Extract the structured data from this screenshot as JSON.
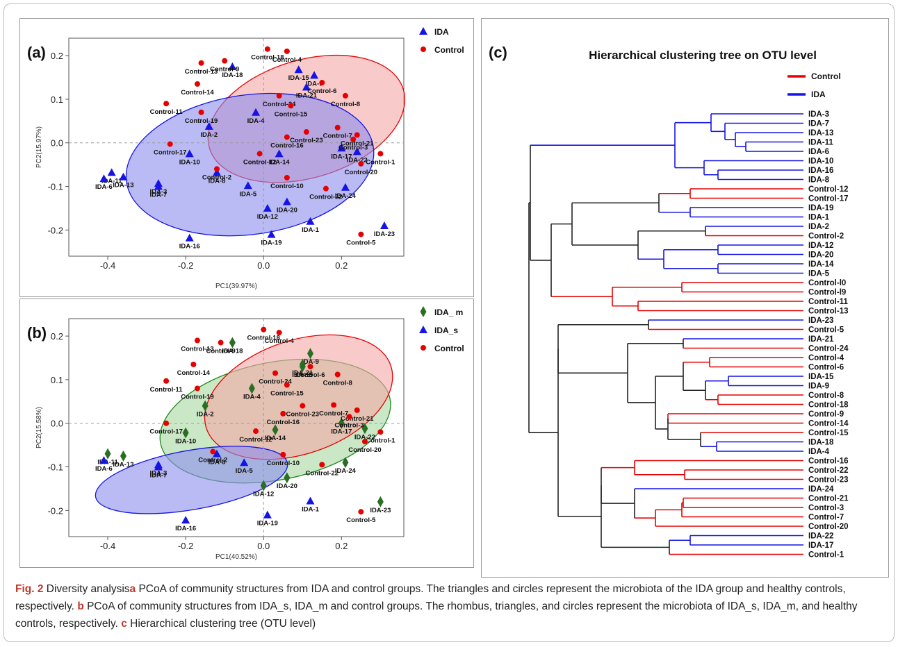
{
  "chart_data": [
    {
      "type": "scatter",
      "panel_label": "(a)",
      "xlabel": "PC1(39.97%)",
      "ylabel": "PC2(15.97%)",
      "xlim": [
        -0.5,
        0.36
      ],
      "ylim": [
        -0.26,
        0.24
      ],
      "xticks": [
        -0.4,
        -0.2,
        0.0,
        0.2
      ],
      "yticks": [
        0.2,
        0.1,
        0.0,
        -0.1,
        -0.2
      ],
      "xtick_labels": [
        "-0.4",
        "-0.2",
        "0.0",
        "0.2"
      ],
      "ytick_labels": [
        "0.2",
        "0.1",
        "0.0",
        "-0.1",
        "-0.2"
      ],
      "legend_position": "top-right",
      "series": [
        {
          "name": "IDA",
          "marker": "triangle",
          "color": "#1414e6",
          "points": [
            {
              "label": "IDA-11",
              "x": -0.39,
              "y": -0.068
            },
            {
              "label": "IDA-13",
              "x": -0.36,
              "y": -0.078
            },
            {
              "label": "IDA-6",
              "x": -0.41,
              "y": -0.082
            },
            {
              "label": "IDA-3",
              "x": -0.27,
              "y": -0.093
            },
            {
              "label": "IDA-7",
              "x": -0.27,
              "y": -0.1
            },
            {
              "label": "IDA-16",
              "x": -0.19,
              "y": -0.218
            },
            {
              "label": "IDA-10",
              "x": -0.19,
              "y": -0.025
            },
            {
              "label": "IDA-2",
              "x": -0.14,
              "y": 0.038
            },
            {
              "label": "IDA-8",
              "x": -0.12,
              "y": -0.068
            },
            {
              "label": "IDA-18",
              "x": -0.08,
              "y": 0.175
            },
            {
              "label": "IDA-4",
              "x": -0.02,
              "y": 0.07
            },
            {
              "label": "IDA-14",
              "x": 0.04,
              "y": -0.025
            },
            {
              "label": "IDA-5",
              "x": -0.04,
              "y": -0.098
            },
            {
              "label": "IDA-12",
              "x": 0.01,
              "y": -0.15
            },
            {
              "label": "IDA-20",
              "x": 0.06,
              "y": -0.135
            },
            {
              "label": "IDA-19",
              "x": 0.02,
              "y": -0.21
            },
            {
              "label": "IDA-1",
              "x": 0.12,
              "y": -0.18
            },
            {
              "label": "IDA-9",
              "x": 0.13,
              "y": 0.155
            },
            {
              "label": "IDA-21",
              "x": 0.11,
              "y": 0.128
            },
            {
              "label": "IDA-17",
              "x": 0.2,
              "y": -0.012
            },
            {
              "label": "IDA-22",
              "x": 0.24,
              "y": -0.02
            },
            {
              "label": "IDA-24",
              "x": 0.21,
              "y": -0.102
            },
            {
              "label": "IDA-23",
              "x": 0.31,
              "y": -0.19
            },
            {
              "label": "IDA-15",
              "x": 0.09,
              "y": 0.168
            }
          ]
        },
        {
          "name": "Control",
          "marker": "circle",
          "color": "#e60000",
          "points": [
            {
              "label": "Control-13",
              "x": -0.16,
              "y": 0.183
            },
            {
              "label": "Control-9",
              "x": -0.1,
              "y": 0.188
            },
            {
              "label": "Control-18",
              "x": 0.01,
              "y": 0.215
            },
            {
              "label": "Control-4",
              "x": 0.06,
              "y": 0.21
            },
            {
              "label": "Control-14",
              "x": -0.17,
              "y": 0.135
            },
            {
              "label": "Control-11",
              "x": -0.25,
              "y": 0.09
            },
            {
              "label": "Control-19",
              "x": -0.16,
              "y": 0.07
            },
            {
              "label": "Control-6",
              "x": 0.15,
              "y": 0.138
            },
            {
              "label": "Control-8",
              "x": 0.21,
              "y": 0.108
            },
            {
              "label": "Control-24",
              "x": 0.04,
              "y": 0.108
            },
            {
              "label": "Control-15",
              "x": 0.07,
              "y": 0.085
            },
            {
              "label": "Control-23",
              "x": 0.11,
              "y": 0.025
            },
            {
              "label": "Control-16",
              "x": 0.06,
              "y": 0.013
            },
            {
              "label": "Control-7",
              "x": 0.19,
              "y": 0.035
            },
            {
              "label": "Control-21",
              "x": 0.24,
              "y": 0.018
            },
            {
              "label": "Control-3",
              "x": 0.23,
              "y": 0.008
            },
            {
              "label": "Control-1",
              "x": 0.3,
              "y": -0.025
            },
            {
              "label": "Control-17",
              "x": -0.24,
              "y": -0.003
            },
            {
              "label": "Control-2",
              "x": -0.12,
              "y": -0.06
            },
            {
              "label": "Control-12",
              "x": -0.01,
              "y": -0.025
            },
            {
              "label": "Control-10",
              "x": 0.06,
              "y": -0.08
            },
            {
              "label": "Control-22",
              "x": 0.16,
              "y": -0.105
            },
            {
              "label": "Control-20",
              "x": 0.25,
              "y": -0.048
            },
            {
              "label": "Control-5",
              "x": 0.25,
              "y": -0.21
            }
          ]
        }
      ],
      "ellipses": [
        {
          "group": "Control",
          "fill": "#f4a6a6",
          "stroke": "#e60000",
          "cx": 0.11,
          "cy": 0.055,
          "rx": 0.26,
          "ry": 0.135,
          "angle": -17
        },
        {
          "group": "IDA",
          "fill": "#8c8cee",
          "stroke": "#1414e6",
          "cx": -0.035,
          "cy": -0.05,
          "rx": 0.32,
          "ry": 0.16,
          "angle": -8
        }
      ]
    },
    {
      "type": "scatter",
      "panel_label": "(b)",
      "xlabel": "PC1(40.52%)",
      "ylabel": "PC2(15.58%)",
      "xlim": [
        -0.5,
        0.36
      ],
      "ylim": [
        -0.26,
        0.24
      ],
      "xticks": [
        -0.4,
        -0.2,
        0.0,
        0.2
      ],
      "yticks": [
        0.2,
        0.1,
        0.0,
        -0.1,
        -0.2
      ],
      "xtick_labels": [
        "-0.4",
        "-0.2",
        "0.0",
        "0.2"
      ],
      "ytick_labels": [
        "0.2",
        "0.1",
        "0.0",
        "-0.1",
        "-0.2"
      ],
      "legend_position": "top-right",
      "series": [
        {
          "name": "IDA_ m",
          "marker": "diamond",
          "color": "#2a6e23",
          "points": [
            {
              "label": "IDA-11",
              "x": -0.4,
              "y": -0.07
            },
            {
              "label": "IDA-13",
              "x": -0.36,
              "y": -0.075
            },
            {
              "label": "IDA-10",
              "x": -0.2,
              "y": -0.022
            },
            {
              "label": "IDA-2",
              "x": -0.15,
              "y": 0.04
            },
            {
              "label": "IDA-18",
              "x": -0.08,
              "y": 0.185
            },
            {
              "label": "IDA-4",
              "x": -0.03,
              "y": 0.08
            },
            {
              "label": "IDA-14",
              "x": 0.03,
              "y": -0.015
            },
            {
              "label": "IDA-12",
              "x": 0.0,
              "y": -0.143
            },
            {
              "label": "IDA-20",
              "x": 0.06,
              "y": -0.125
            },
            {
              "label": "IDA-9",
              "x": 0.12,
              "y": 0.16
            },
            {
              "label": "IDA-21",
              "x": 0.1,
              "y": 0.135
            },
            {
              "label": "IDA-17",
              "x": 0.2,
              "y": 0.0
            },
            {
              "label": "IDA-22",
              "x": 0.26,
              "y": -0.012
            },
            {
              "label": "IDA-24",
              "x": 0.21,
              "y": -0.09
            },
            {
              "label": "IDA-23",
              "x": 0.3,
              "y": -0.18
            },
            {
              "label": "IDA-15",
              "x": 0.1,
              "y": 0.13
            }
          ]
        },
        {
          "name": "IDA_s",
          "marker": "triangle",
          "color": "#1414e6",
          "points": [
            {
              "label": "IDA-6",
              "x": -0.41,
              "y": -0.085
            },
            {
              "label": "IDA-3",
              "x": -0.27,
              "y": -0.095
            },
            {
              "label": "IDA-7",
              "x": -0.27,
              "y": -0.1
            },
            {
              "label": "IDA-8",
              "x": -0.12,
              "y": -0.07
            },
            {
              "label": "IDA-5",
              "x": -0.05,
              "y": -0.09
            },
            {
              "label": "IDA-16",
              "x": -0.2,
              "y": -0.222
            },
            {
              "label": "IDA-19",
              "x": 0.01,
              "y": -0.21
            },
            {
              "label": "IDA-1",
              "x": 0.12,
              "y": -0.178
            }
          ]
        },
        {
          "name": "Control",
          "marker": "circle",
          "color": "#e60000",
          "points": [
            {
              "label": "Control-13",
              "x": -0.17,
              "y": 0.19
            },
            {
              "label": "Control-9",
              "x": -0.11,
              "y": 0.185
            },
            {
              "label": "Control-18",
              "x": 0.0,
              "y": 0.215
            },
            {
              "label": "Control-4",
              "x": 0.04,
              "y": 0.208
            },
            {
              "label": "Control-14",
              "x": -0.18,
              "y": 0.135
            },
            {
              "label": "Control-11",
              "x": -0.25,
              "y": 0.097
            },
            {
              "label": "Control-19",
              "x": -0.17,
              "y": 0.08
            },
            {
              "label": "Control-6",
              "x": 0.12,
              "y": 0.13
            },
            {
              "label": "Control-8",
              "x": 0.19,
              "y": 0.112
            },
            {
              "label": "Control-24",
              "x": 0.03,
              "y": 0.115
            },
            {
              "label": "Control-15",
              "x": 0.06,
              "y": 0.088
            },
            {
              "label": "Control-23",
              "x": 0.1,
              "y": 0.04
            },
            {
              "label": "Control-16",
              "x": 0.05,
              "y": 0.022
            },
            {
              "label": "Control-7",
              "x": 0.18,
              "y": 0.042
            },
            {
              "label": "Control-21",
              "x": 0.24,
              "y": 0.03
            },
            {
              "label": "Control-3",
              "x": 0.22,
              "y": 0.015
            },
            {
              "label": "Control-1",
              "x": 0.3,
              "y": -0.02
            },
            {
              "label": "Control-17",
              "x": -0.25,
              "y": 0.0
            },
            {
              "label": "Control-2",
              "x": -0.13,
              "y": -0.065
            },
            {
              "label": "Control-12",
              "x": -0.02,
              "y": -0.018
            },
            {
              "label": "Control-10",
              "x": 0.05,
              "y": -0.072
            },
            {
              "label": "Control-22",
              "x": 0.15,
              "y": -0.095
            },
            {
              "label": "Control-20",
              "x": 0.26,
              "y": -0.042
            },
            {
              "label": "Control-5",
              "x": 0.25,
              "y": -0.203
            }
          ]
        }
      ],
      "ellipses": [
        {
          "group": "IDA_ m",
          "fill": "#a8d9a0",
          "stroke": "#1f8a1f",
          "cx": 0.03,
          "cy": 0.005,
          "rx": 0.3,
          "ry": 0.135,
          "angle": -11
        },
        {
          "group": "Control",
          "fill": "#f4a6a6",
          "stroke": "#e60000",
          "cx": 0.09,
          "cy": 0.06,
          "rx": 0.25,
          "ry": 0.13,
          "angle": -19
        },
        {
          "group": "IDA_s",
          "fill": "#8c8cee",
          "stroke": "#1414e6",
          "cx": -0.185,
          "cy": -0.13,
          "rx": 0.25,
          "ry": 0.068,
          "angle": -10
        }
      ]
    },
    {
      "type": "dendrogram",
      "panel_label": "(c)",
      "title": "Hierarchical clustering tree on OTU level",
      "legend_position": "top-right",
      "legend": [
        {
          "name": "Control",
          "color": "#e60000"
        },
        {
          "name": "IDA",
          "color": "#1414e6"
        }
      ],
      "leaves": [
        {
          "label": "IDA-3",
          "group": "IDA"
        },
        {
          "label": "IDA-7",
          "group": "IDA"
        },
        {
          "label": "IDA-13",
          "group": "IDA"
        },
        {
          "label": "IDA-11",
          "group": "IDA"
        },
        {
          "label": "IDA-6",
          "group": "IDA"
        },
        {
          "label": "IDA-10",
          "group": "IDA"
        },
        {
          "label": "IDA-16",
          "group": "IDA"
        },
        {
          "label": "IDA-8",
          "group": "IDA"
        },
        {
          "label": "Control-12",
          "group": "Control"
        },
        {
          "label": "Control-17",
          "group": "Control"
        },
        {
          "label": "IDA-19",
          "group": "IDA"
        },
        {
          "label": "IDA-1",
          "group": "IDA"
        },
        {
          "label": "IDA-2",
          "group": "IDA"
        },
        {
          "label": "Control-2",
          "group": "Control"
        },
        {
          "label": "IDA-12",
          "group": "IDA"
        },
        {
          "label": "IDA-20",
          "group": "IDA"
        },
        {
          "label": "IDA-14",
          "group": "IDA"
        },
        {
          "label": "IDA-5",
          "group": "IDA"
        },
        {
          "label": "Control-l0",
          "group": "Control"
        },
        {
          "label": "Control-l9",
          "group": "Control"
        },
        {
          "label": "Control-11",
          "group": "Control"
        },
        {
          "label": "Control-13",
          "group": "Control"
        },
        {
          "label": "IDA-23",
          "group": "IDA"
        },
        {
          "label": "Control-5",
          "group": "Control"
        },
        {
          "label": "IDA-21",
          "group": "IDA"
        },
        {
          "label": "Control-24",
          "group": "Control"
        },
        {
          "label": "Control-4",
          "group": "Control"
        },
        {
          "label": "Control-6",
          "group": "Control"
        },
        {
          "label": "IDA-15",
          "group": "IDA"
        },
        {
          "label": "IDA-9",
          "group": "IDA"
        },
        {
          "label": "Control-8",
          "group": "Control"
        },
        {
          "label": "Control-18",
          "group": "Control"
        },
        {
          "label": "Control-9",
          "group": "Control"
        },
        {
          "label": "Control-14",
          "group": "Control"
        },
        {
          "label": "Control-15",
          "group": "Control"
        },
        {
          "label": "IDA-18",
          "group": "IDA"
        },
        {
          "label": "IDA-4",
          "group": "IDA"
        },
        {
          "label": "Control-16",
          "group": "Control"
        },
        {
          "label": "Control-22",
          "group": "Control"
        },
        {
          "label": "Control-23",
          "group": "Control"
        },
        {
          "label": "IDA-24",
          "group": "IDA"
        },
        {
          "label": "Control-21",
          "group": "Control"
        },
        {
          "label": "Control-3",
          "group": "Control"
        },
        {
          "label": "Control-7",
          "group": "Control"
        },
        {
          "label": "Control-20",
          "group": "Control"
        },
        {
          "label": "IDA-22",
          "group": "IDA"
        },
        {
          "label": "IDA-17",
          "group": "IDA"
        },
        {
          "label": "Control-1",
          "group": "Control"
        }
      ]
    }
  ],
  "caption": {
    "fig": "Fig. 2",
    "p1": " Diversity analysis",
    "a": "a",
    "p2": " PCoA of community structures from IDA and control groups. The triangles and circles represent the microbiota of the IDA group and healthy controls, respectively. ",
    "b": "b",
    "p3": " PCoA of community structures from IDA_s, IDA_m and control groups. The rhombus, triangles, and circles represent the microbiota of IDA_s, IDA_m, and healthy controls, respectively. ",
    "c": "c",
    "p4": " Hierarchical clustering tree (OTU level)"
  }
}
